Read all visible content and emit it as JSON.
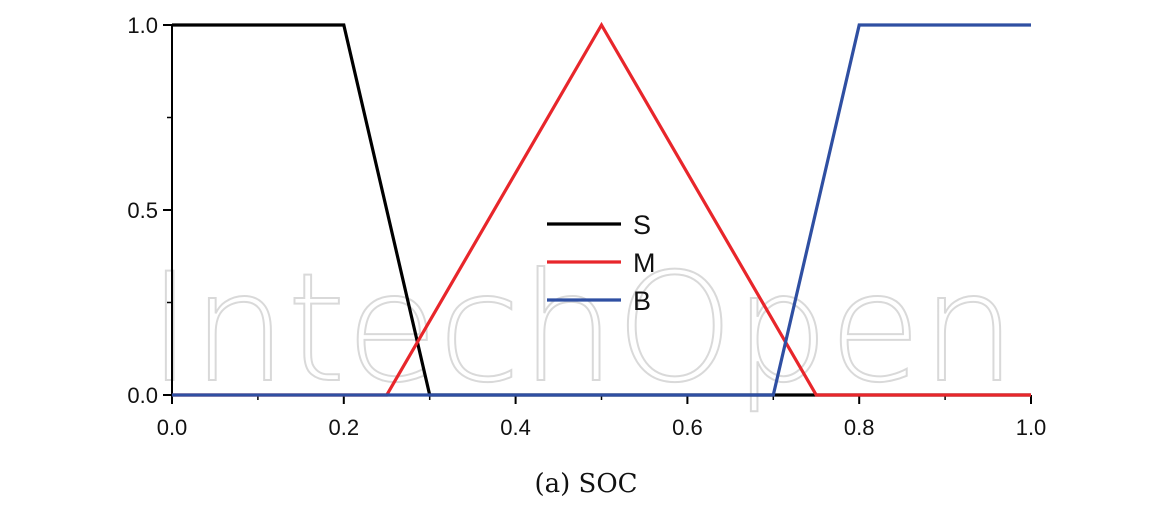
{
  "chart_data": {
    "type": "line",
    "title": "",
    "xlabel": "(a) SOC",
    "ylabel": "",
    "xlim": [
      0.0,
      1.0
    ],
    "ylim": [
      0.0,
      1.0
    ],
    "x_ticks": [
      "0.0",
      "0.2",
      "0.4",
      "0.6",
      "0.8",
      "1.0"
    ],
    "x_tick_values": [
      0.0,
      0.2,
      0.4,
      0.6,
      0.8,
      1.0
    ],
    "y_ticks": [
      "0.0",
      "0.5",
      "1.0"
    ],
    "y_tick_values": [
      0.0,
      0.5,
      1.0
    ],
    "grid": false,
    "legend_placement": "center",
    "series": [
      {
        "name": "S",
        "color": "#000000",
        "x": [
          0.0,
          0.2,
          0.3,
          1.0
        ],
        "y": [
          1.0,
          1.0,
          0.0,
          0.0
        ]
      },
      {
        "name": "M",
        "color": "#e8262b",
        "x": [
          0.0,
          0.25,
          0.5,
          0.75,
          1.0
        ],
        "y": [
          0.0,
          0.0,
          1.0,
          0.0,
          0.0
        ]
      },
      {
        "name": "B",
        "color": "#2f4fa2",
        "x": [
          0.0,
          0.7,
          0.8,
          1.0
        ],
        "y": [
          0.0,
          0.0,
          1.0,
          1.0
        ]
      }
    ]
  },
  "watermark": {
    "text": "IntechOpen"
  }
}
